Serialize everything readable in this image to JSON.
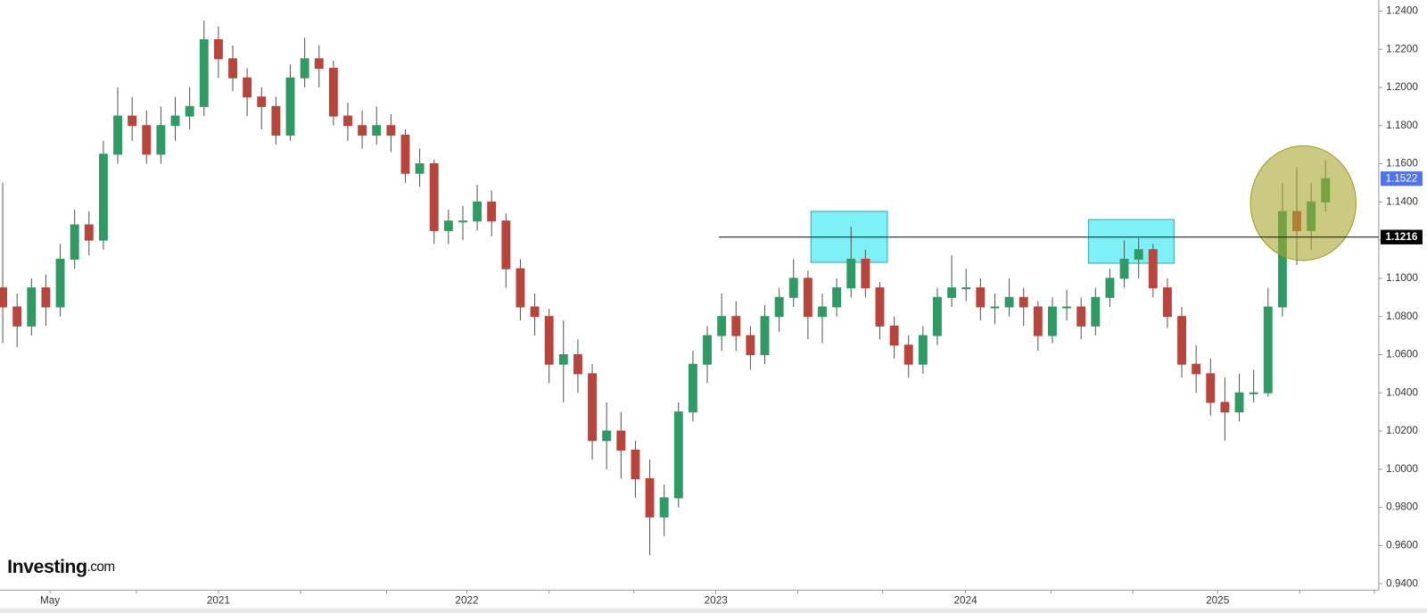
{
  "chart_data": {
    "type": "candlestick",
    "logo": {
      "brand": "Investing",
      "suffix": ".com"
    },
    "up_color": "#2f9a64",
    "down_color": "#b8453c",
    "ohlc": [
      [
        1.095,
        1.15,
        1.066,
        1.085
      ],
      [
        1.085,
        1.092,
        1.064,
        1.075
      ],
      [
        1.075,
        1.1,
        1.07,
        1.095
      ],
      [
        1.095,
        1.102,
        1.075,
        1.085
      ],
      [
        1.085,
        1.118,
        1.08,
        1.11
      ],
      [
        1.11,
        1.136,
        1.105,
        1.128
      ],
      [
        1.128,
        1.135,
        1.112,
        1.12
      ],
      [
        1.12,
        1.172,
        1.115,
        1.165
      ],
      [
        1.165,
        1.2,
        1.16,
        1.185
      ],
      [
        1.185,
        1.195,
        1.172,
        1.18
      ],
      [
        1.18,
        1.188,
        1.16,
        1.165
      ],
      [
        1.165,
        1.19,
        1.16,
        1.18
      ],
      [
        1.18,
        1.195,
        1.172,
        1.185
      ],
      [
        1.185,
        1.2,
        1.178,
        1.19
      ],
      [
        1.19,
        1.235,
        1.185,
        1.225
      ],
      [
        1.225,
        1.232,
        1.205,
        1.215
      ],
      [
        1.215,
        1.222,
        1.198,
        1.205
      ],
      [
        1.205,
        1.21,
        1.185,
        1.195
      ],
      [
        1.195,
        1.2,
        1.178,
        1.19
      ],
      [
        1.19,
        1.195,
        1.17,
        1.175
      ],
      [
        1.175,
        1.212,
        1.172,
        1.205
      ],
      [
        1.205,
        1.226,
        1.2,
        1.215
      ],
      [
        1.215,
        1.222,
        1.2,
        1.21
      ],
      [
        1.21,
        1.214,
        1.18,
        1.185
      ],
      [
        1.185,
        1.192,
        1.172,
        1.18
      ],
      [
        1.18,
        1.188,
        1.168,
        1.175
      ],
      [
        1.175,
        1.19,
        1.17,
        1.18
      ],
      [
        1.18,
        1.186,
        1.166,
        1.175
      ],
      [
        1.175,
        1.178,
        1.15,
        1.155
      ],
      [
        1.155,
        1.168,
        1.148,
        1.16
      ],
      [
        1.16,
        1.162,
        1.118,
        1.125
      ],
      [
        1.125,
        1.136,
        1.118,
        1.13
      ],
      [
        1.13,
        1.138,
        1.12,
        1.13
      ],
      [
        1.13,
        1.149,
        1.125,
        1.14
      ],
      [
        1.14,
        1.146,
        1.122,
        1.13
      ],
      [
        1.13,
        1.134,
        1.095,
        1.105
      ],
      [
        1.105,
        1.11,
        1.078,
        1.085
      ],
      [
        1.085,
        1.092,
        1.07,
        1.08
      ],
      [
        1.08,
        1.084,
        1.045,
        1.055
      ],
      [
        1.055,
        1.078,
        1.035,
        1.06
      ],
      [
        1.06,
        1.068,
        1.04,
        1.05
      ],
      [
        1.05,
        1.055,
        1.005,
        1.015
      ],
      [
        1.015,
        1.035,
        1.0,
        1.02
      ],
      [
        1.02,
        1.03,
        0.995,
        1.01
      ],
      [
        1.01,
        1.015,
        0.985,
        0.995
      ],
      [
        0.995,
        1.005,
        0.955,
        0.975
      ],
      [
        0.975,
        0.992,
        0.965,
        0.985
      ],
      [
        0.985,
        1.035,
        0.98,
        1.03
      ],
      [
        1.03,
        1.062,
        1.025,
        1.055
      ],
      [
        1.055,
        1.075,
        1.045,
        1.07
      ],
      [
        1.07,
        1.092,
        1.062,
        1.08
      ],
      [
        1.08,
        1.088,
        1.062,
        1.07
      ],
      [
        1.07,
        1.075,
        1.052,
        1.06
      ],
      [
        1.06,
        1.086,
        1.055,
        1.08
      ],
      [
        1.08,
        1.095,
        1.072,
        1.09
      ],
      [
        1.09,
        1.11,
        1.085,
        1.1
      ],
      [
        1.1,
        1.104,
        1.068,
        1.08
      ],
      [
        1.08,
        1.092,
        1.066,
        1.085
      ],
      [
        1.085,
        1.1,
        1.08,
        1.095
      ],
      [
        1.095,
        1.127,
        1.09,
        1.11
      ],
      [
        1.11,
        1.115,
        1.09,
        1.095
      ],
      [
        1.095,
        1.098,
        1.068,
        1.075
      ],
      [
        1.075,
        1.08,
        1.058,
        1.065
      ],
      [
        1.065,
        1.07,
        1.048,
        1.055
      ],
      [
        1.055,
        1.075,
        1.05,
        1.07
      ],
      [
        1.07,
        1.095,
        1.065,
        1.09
      ],
      [
        1.09,
        1.112,
        1.085,
        1.095
      ],
      [
        1.095,
        1.105,
        1.088,
        1.095
      ],
      [
        1.095,
        1.1,
        1.078,
        1.085
      ],
      [
        1.085,
        1.092,
        1.076,
        1.085
      ],
      [
        1.085,
        1.1,
        1.08,
        1.09
      ],
      [
        1.09,
        1.095,
        1.075,
        1.085
      ],
      [
        1.085,
        1.088,
        1.062,
        1.07
      ],
      [
        1.07,
        1.09,
        1.066,
        1.085
      ],
      [
        1.085,
        1.094,
        1.078,
        1.085
      ],
      [
        1.085,
        1.09,
        1.068,
        1.075
      ],
      [
        1.075,
        1.095,
        1.07,
        1.09
      ],
      [
        1.09,
        1.105,
        1.085,
        1.1
      ],
      [
        1.1,
        1.12,
        1.095,
        1.11
      ],
      [
        1.11,
        1.121,
        1.1,
        1.115
      ],
      [
        1.115,
        1.118,
        1.09,
        1.095
      ],
      [
        1.095,
        1.1,
        1.074,
        1.08
      ],
      [
        1.08,
        1.085,
        1.048,
        1.055
      ],
      [
        1.055,
        1.065,
        1.04,
        1.05
      ],
      [
        1.05,
        1.058,
        1.028,
        1.035
      ],
      [
        1.035,
        1.048,
        1.015,
        1.03
      ],
      [
        1.03,
        1.05,
        1.025,
        1.04
      ],
      [
        1.04,
        1.052,
        1.035,
        1.04
      ],
      [
        1.04,
        1.095,
        1.038,
        1.085
      ],
      [
        1.085,
        1.15,
        1.08,
        1.135
      ],
      [
        1.135,
        1.158,
        1.107,
        1.125
      ],
      [
        1.125,
        1.15,
        1.115,
        1.14
      ],
      [
        1.14,
        1.162,
        1.135,
        1.1522
      ]
    ],
    "hline": {
      "value": 1.1216,
      "label": "1.1216"
    },
    "xlim": [
      -0.19,
      95.7
    ],
    "xticks": [
      {
        "value": 3.29,
        "label": "May"
      },
      {
        "value": 15.0,
        "label": "2021"
      },
      {
        "value": 32.28,
        "label": "2022"
      },
      {
        "value": 49.6,
        "label": "2023"
      },
      {
        "value": 66.96,
        "label": "2024"
      },
      {
        "value": 84.49,
        "label": "2025"
      }
    ],
    "xminorticks": [
      9.3,
      20.7,
      26.7,
      38.0,
      43.9,
      55.3,
      61.2,
      72.9,
      78.6,
      90.2,
      95.4
    ],
    "ylim": [
      0.94,
      1.24
    ],
    "yticks": [
      {
        "value": 0.94,
        "label": "0.9400"
      },
      {
        "value": 0.96,
        "label": "0.9600"
      },
      {
        "value": 0.98,
        "label": "0.9800"
      },
      {
        "value": 1.0,
        "label": "1.0000"
      },
      {
        "value": 1.02,
        "label": "1.0200"
      },
      {
        "value": 1.04,
        "label": "1.0400"
      },
      {
        "value": 1.06,
        "label": "1.0600"
      },
      {
        "value": 1.08,
        "label": "1.0800"
      },
      {
        "value": 1.1,
        "label": "1.1000"
      },
      {
        "value": 1.12,
        "label": "1.1200"
      },
      {
        "value": 1.14,
        "label": "1.1400"
      },
      {
        "value": 1.16,
        "label": "1.1600"
      },
      {
        "value": 1.18,
        "label": "1.1800"
      },
      {
        "value": 1.2,
        "label": "1.2000"
      },
      {
        "value": 1.22,
        "label": "1.2200"
      },
      {
        "value": 1.24,
        "label": "1.2400"
      }
    ]
  }
}
